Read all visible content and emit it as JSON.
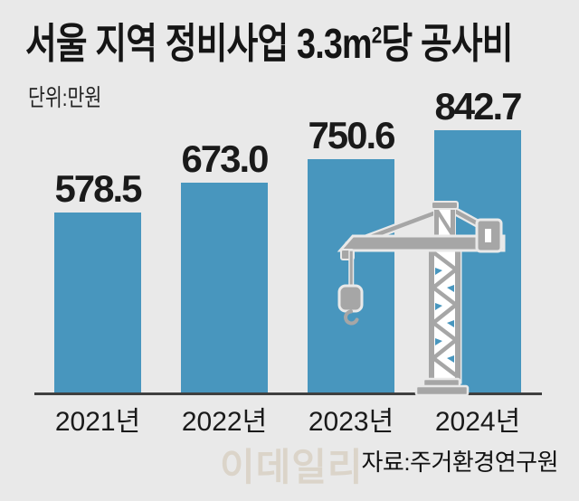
{
  "title": "서울 지역 정비사업 3.3㎡당 공사비",
  "title_parts": {
    "pre": "서울 지역 정비사업 3.3",
    "m": "m",
    "sup": "2",
    "post": "당 공사비"
  },
  "unit_label": "단위:만원",
  "source_label": "자료:주거환경연구원",
  "watermark": "이데일리",
  "colors": {
    "background": "#e9e9e9",
    "bar": "#4896be",
    "crane": "#a6a6a6",
    "axis": "#3f3f3f",
    "watermark": "#d5ccbd"
  },
  "chart_data": {
    "type": "bar",
    "categories": [
      "2021년",
      "2022년",
      "2023년",
      "2024년"
    ],
    "values": [
      578.5,
      673.0,
      750.6,
      842.7
    ],
    "value_labels": [
      "578.5",
      "673.0",
      "750.6",
      "842.7"
    ],
    "title": "서울 지역 정비사업 3.3㎡당 공사비",
    "xlabel": "",
    "ylabel": "만원",
    "unit": "만원",
    "ylim": [
      0,
      870
    ],
    "grid": false,
    "legend": false
  },
  "icons": {
    "crane": "tower-crane-icon"
  }
}
